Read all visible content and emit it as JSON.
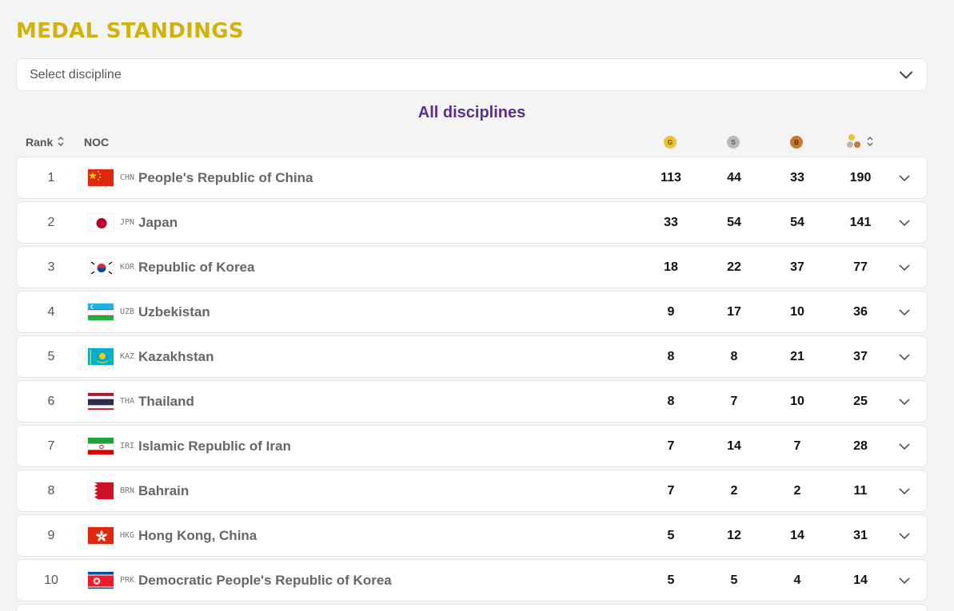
{
  "title": "MEDAL STANDINGS",
  "select": {
    "placeholder": "Select discipline"
  },
  "subtitle": "All disciplines",
  "columns": {
    "rank": "Rank",
    "noc": "NOC",
    "gold_letter": "G",
    "silver_letter": "S",
    "bronze_letter": "B"
  },
  "colors": {
    "title": "#d1b20a",
    "subtitle": "#5c2f8c",
    "gold": "#e9c13a",
    "silver": "#b9b9b9",
    "bronze": "#c97a2c"
  },
  "rows": [
    {
      "rank": "1",
      "code": "CHN",
      "name": "People's Republic of China",
      "gold": "113",
      "silver": "44",
      "bronze": "33",
      "total": "190"
    },
    {
      "rank": "2",
      "code": "JPN",
      "name": "Japan",
      "gold": "33",
      "silver": "54",
      "bronze": "54",
      "total": "141"
    },
    {
      "rank": "3",
      "code": "KOR",
      "name": "Republic of Korea",
      "gold": "18",
      "silver": "22",
      "bronze": "37",
      "total": "77"
    },
    {
      "rank": "4",
      "code": "UZB",
      "name": "Uzbekistan",
      "gold": "9",
      "silver": "17",
      "bronze": "10",
      "total": "36"
    },
    {
      "rank": "5",
      "code": "KAZ",
      "name": "Kazakhstan",
      "gold": "8",
      "silver": "8",
      "bronze": "21",
      "total": "37"
    },
    {
      "rank": "6",
      "code": "THA",
      "name": "Thailand",
      "gold": "8",
      "silver": "7",
      "bronze": "10",
      "total": "25"
    },
    {
      "rank": "7",
      "code": "IRI",
      "name": "Islamic Republic of Iran",
      "gold": "7",
      "silver": "14",
      "bronze": "7",
      "total": "28"
    },
    {
      "rank": "8",
      "code": "BRN",
      "name": "Bahrain",
      "gold": "7",
      "silver": "2",
      "bronze": "2",
      "total": "11"
    },
    {
      "rank": "9",
      "code": "HKG",
      "name": "Hong Kong, China",
      "gold": "5",
      "silver": "12",
      "bronze": "14",
      "total": "31"
    },
    {
      "rank": "10",
      "code": "PRK",
      "name": "Democratic People's Republic of Korea",
      "gold": "5",
      "silver": "5",
      "bronze": "4",
      "total": "14"
    }
  ]
}
